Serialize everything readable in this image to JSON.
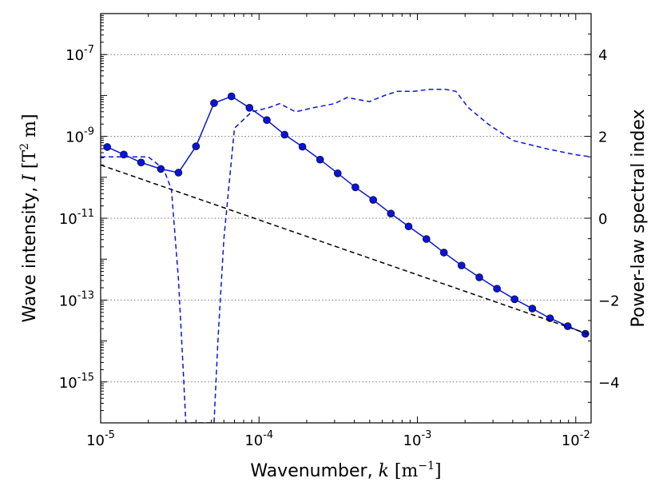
{
  "chart_data": {
    "type": "line",
    "xscale": "log",
    "xlim": [
      1e-05,
      0.0125
    ],
    "xticks": [
      {
        "value": 1e-05,
        "base": "10",
        "exp": "-5"
      },
      {
        "value": 0.0001,
        "base": "10",
        "exp": "-4"
      },
      {
        "value": 0.001,
        "base": "10",
        "exp": "-3"
      },
      {
        "value": 0.01,
        "base": "10",
        "exp": "-2"
      }
    ],
    "xlabel": {
      "text": "Wavenumber, ",
      "var": "k",
      "unit_base": "m",
      "unit_exp": "−1"
    },
    "y_left": {
      "scale": "log",
      "lim": [
        1e-16,
        1e-06
      ],
      "ticks": [
        {
          "value": 1e-07,
          "base": "10",
          "exp": "-7"
        },
        {
          "value": 1e-09,
          "base": "10",
          "exp": "-9"
        },
        {
          "value": 1e-11,
          "base": "10",
          "exp": "-11"
        },
        {
          "value": 1e-13,
          "base": "10",
          "exp": "-13"
        },
        {
          "value": 1e-15,
          "base": "10",
          "exp": "-15"
        }
      ],
      "label": {
        "text": "Wave intensity, ",
        "var": "I",
        "unit_pre": "T",
        "unit_exp": "2",
        "unit_post": " m"
      }
    },
    "y_right": {
      "scale": "linear",
      "lim": [
        -5,
        5
      ],
      "ticks": [
        {
          "value": 4,
          "label": "4"
        },
        {
          "value": 2,
          "label": "2"
        },
        {
          "value": 0,
          "label": "0"
        },
        {
          "value": -2,
          "label": "−2"
        },
        {
          "value": -4,
          "label": "−4"
        }
      ],
      "label": "Power-law spectral index",
      "gridlines": [
        4,
        2,
        0,
        -2,
        -4
      ]
    },
    "series": [
      {
        "name": "wave-intensity",
        "axis": "left",
        "style": "solid-markers",
        "color": "#0a14d8",
        "x": [
          1.1e-05,
          1.4e-05,
          1.8e-05,
          2.4e-05,
          3.1e-05,
          4e-05,
          5.2e-05,
          6.7e-05,
          8.7e-05,
          0.000112,
          0.000145,
          0.000188,
          0.000243,
          0.000314,
          0.000406,
          0.000526,
          0.00068,
          0.00088,
          0.00114,
          0.00147,
          0.0019,
          0.00246,
          0.00318,
          0.00411,
          0.00532,
          0.00688,
          0.0089,
          0.0115
        ],
        "y": [
          5.5e-10,
          3.6e-10,
          2.3e-10,
          1.6e-10,
          1.3e-10,
          5.7e-10,
          6.5e-09,
          9.5e-09,
          5e-09,
          2.5e-09,
          1.1e-09,
          5.6e-10,
          2.7e-10,
          1.25e-10,
          5.7e-11,
          2.8e-11,
          1.3e-11,
          6.3e-12,
          3.1e-12,
          1.45e-12,
          7e-13,
          3.6e-13,
          1.9e-13,
          1.05e-13,
          6.2e-14,
          3.6e-14,
          2.3e-14,
          1.5e-14
        ]
      },
      {
        "name": "power-law-fit",
        "axis": "left",
        "style": "dashed",
        "color": "#000000",
        "x": [
          1e-05,
          0.0125
        ],
        "y": [
          2e-10,
          1.4e-14
        ]
      },
      {
        "name": "spectral-index",
        "axis": "right",
        "style": "dashed",
        "color": "#0a14d8",
        "x": [
          1e-05,
          1.6e-05,
          2e-05,
          2.5e-05,
          2.8e-05,
          3.1e-05,
          3.3e-05,
          3.45e-05,
          5.2e-05,
          5.5e-05,
          6e-05,
          7e-05,
          9e-05,
          0.000115,
          0.000135,
          0.00017,
          0.00022,
          0.0003,
          0.00036,
          0.00042,
          0.0005,
          0.00062,
          0.00075,
          0.00095,
          0.0012,
          0.0015,
          0.00175,
          0.0021,
          0.0028,
          0.004,
          0.0065,
          0.01,
          0.0125
        ],
        "y": [
          1.5,
          1.5,
          1.5,
          1.2,
          0.7,
          -1.5,
          -3.5,
          -5.0,
          -5.0,
          -3.0,
          -0.5,
          2.2,
          2.6,
          2.7,
          2.8,
          2.6,
          2.7,
          2.8,
          2.95,
          2.9,
          2.85,
          3.0,
          3.1,
          3.1,
          3.15,
          3.15,
          3.1,
          2.7,
          2.3,
          1.9,
          1.7,
          1.55,
          1.5
        ]
      }
    ]
  }
}
